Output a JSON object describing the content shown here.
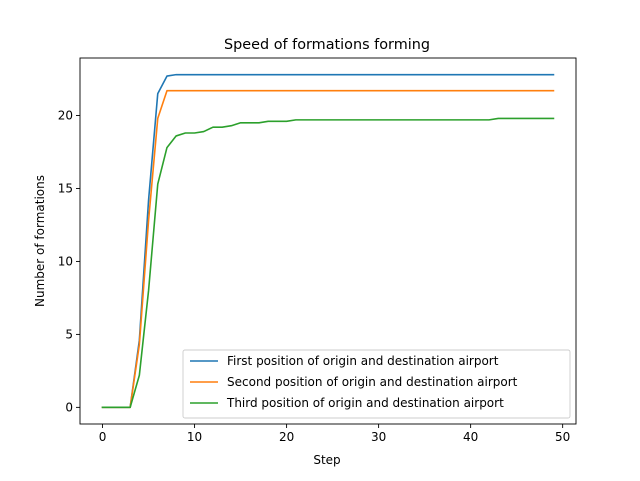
{
  "chart_data": {
    "type": "line",
    "title": "Speed of formations forming",
    "xlabel": "Step",
    "ylabel": "Number of formations",
    "xlim": [
      -2.45,
      51.45
    ],
    "ylim": [
      -1.14,
      23.94
    ],
    "xticks": [
      0,
      10,
      20,
      30,
      40,
      50
    ],
    "yticks": [
      0,
      5,
      10,
      15,
      20
    ],
    "grid": false,
    "legend_position": "lower right",
    "x": [
      0,
      1,
      2,
      3,
      4,
      5,
      6,
      7,
      8,
      9,
      10,
      11,
      12,
      13,
      14,
      15,
      16,
      17,
      18,
      19,
      20,
      21,
      22,
      23,
      24,
      25,
      26,
      27,
      28,
      29,
      30,
      31,
      32,
      33,
      34,
      35,
      36,
      37,
      38,
      39,
      40,
      41,
      42,
      43,
      44,
      45,
      46,
      47,
      48,
      49
    ],
    "series": [
      {
        "name": "First position of origin and destination airport",
        "color": "#1f77b4",
        "values": [
          0,
          0,
          0,
          0,
          4.6,
          14.2,
          21.5,
          22.7,
          22.8,
          22.8,
          22.8,
          22.8,
          22.8,
          22.8,
          22.8,
          22.8,
          22.8,
          22.8,
          22.8,
          22.8,
          22.8,
          22.8,
          22.8,
          22.8,
          22.8,
          22.8,
          22.8,
          22.8,
          22.8,
          22.8,
          22.8,
          22.8,
          22.8,
          22.8,
          22.8,
          22.8,
          22.8,
          22.8,
          22.8,
          22.8,
          22.8,
          22.8,
          22.8,
          22.8,
          22.8,
          22.8,
          22.8,
          22.8,
          22.8,
          22.8
        ]
      },
      {
        "name": "Second position of origin and destination airport",
        "color": "#ff7f0e",
        "values": [
          0,
          0,
          0,
          0,
          4.3,
          12.8,
          19.8,
          21.7,
          21.7,
          21.7,
          21.7,
          21.7,
          21.7,
          21.7,
          21.7,
          21.7,
          21.7,
          21.7,
          21.7,
          21.7,
          21.7,
          21.7,
          21.7,
          21.7,
          21.7,
          21.7,
          21.7,
          21.7,
          21.7,
          21.7,
          21.7,
          21.7,
          21.7,
          21.7,
          21.7,
          21.7,
          21.7,
          21.7,
          21.7,
          21.7,
          21.7,
          21.7,
          21.7,
          21.7,
          21.7,
          21.7,
          21.7,
          21.7,
          21.7,
          21.7
        ]
      },
      {
        "name": "Third position of origin and destination airport",
        "color": "#2ca02c",
        "values": [
          0,
          0,
          0,
          0,
          2.2,
          8.0,
          15.3,
          17.8,
          18.6,
          18.8,
          18.8,
          18.9,
          19.2,
          19.2,
          19.3,
          19.5,
          19.5,
          19.5,
          19.6,
          19.6,
          19.6,
          19.7,
          19.7,
          19.7,
          19.7,
          19.7,
          19.7,
          19.7,
          19.7,
          19.7,
          19.7,
          19.7,
          19.7,
          19.7,
          19.7,
          19.7,
          19.7,
          19.7,
          19.7,
          19.7,
          19.7,
          19.7,
          19.7,
          19.8,
          19.8,
          19.8,
          19.8,
          19.8,
          19.8,
          19.8
        ]
      }
    ]
  }
}
